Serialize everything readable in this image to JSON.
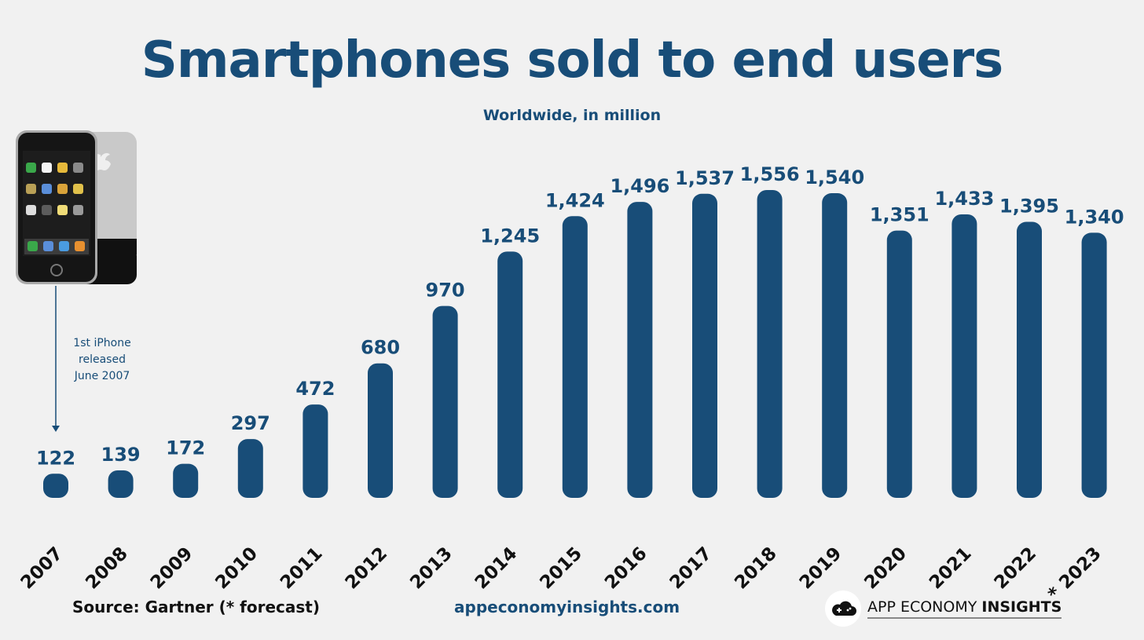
{
  "header": {
    "title": "Smartphones sold to end users",
    "subtitle": "Worldwide, in million"
  },
  "annotation": {
    "lines": [
      "1st iPhone",
      "released",
      "June 2007"
    ]
  },
  "footer": {
    "source": "Source: Gartner (* forecast)",
    "url": "appeconomyinsights.com",
    "brand_light": "APP ECONOMY ",
    "brand_bold": "INSIGHTS"
  },
  "colors": {
    "bar": "#184d78",
    "title": "#184d78",
    "background": "#f1f1f1"
  },
  "icons": {
    "phone": "iphone-image-icon",
    "brand": "gamepad-cloud-icon"
  },
  "chart_data": {
    "type": "bar",
    "title": "Smartphones sold to end users",
    "subtitle": "Worldwide, in million",
    "categories": [
      "2007",
      "2008",
      "2009",
      "2010",
      "2011",
      "2012",
      "2013",
      "2014",
      "2015",
      "2016",
      "2017",
      "2018",
      "2019",
      "2020",
      "2021",
      "2022",
      "* 2023"
    ],
    "values": [
      122,
      139,
      172,
      297,
      472,
      680,
      970,
      1245,
      1424,
      1496,
      1537,
      1556,
      1540,
      1351,
      1433,
      1395,
      1340
    ],
    "value_labels": [
      "122",
      "139",
      "172",
      "297",
      "472",
      "680",
      "970",
      "1,245",
      "1,424",
      "1,496",
      "1,537",
      "1,556",
      "1,540",
      "1,351",
      "1,433",
      "1,395",
      "1,340"
    ],
    "xlabel": "",
    "ylabel": "",
    "ylim": [
      0,
      1556
    ],
    "grid": false,
    "legend": "none"
  }
}
